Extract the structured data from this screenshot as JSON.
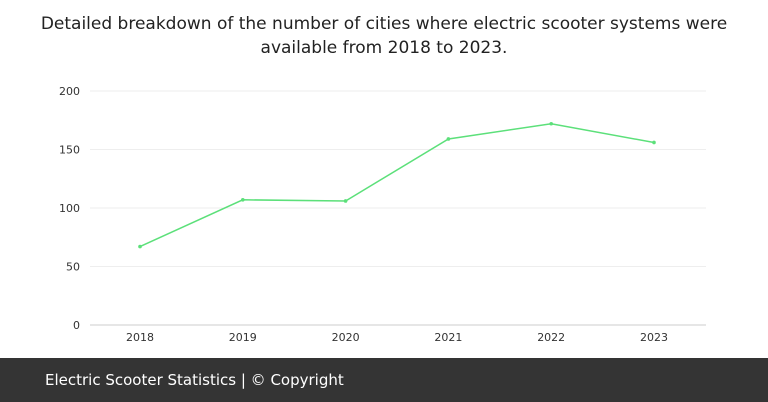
{
  "chart_data": {
    "type": "line",
    "title": "Detailed breakdown of the number of cities where electric scooter systems were available from 2018 to 2023.",
    "categories": [
      "2018",
      "2019",
      "2020",
      "2021",
      "2022",
      "2023"
    ],
    "values": [
      67,
      107,
      106,
      159,
      172,
      156
    ],
    "yticks": [
      0,
      50,
      100,
      150,
      200
    ],
    "ylim": [
      0,
      200
    ],
    "grid": true,
    "line_color": "#5ce07a"
  },
  "footer": {
    "text": "Electric Scooter Statistics | © Copyright"
  }
}
